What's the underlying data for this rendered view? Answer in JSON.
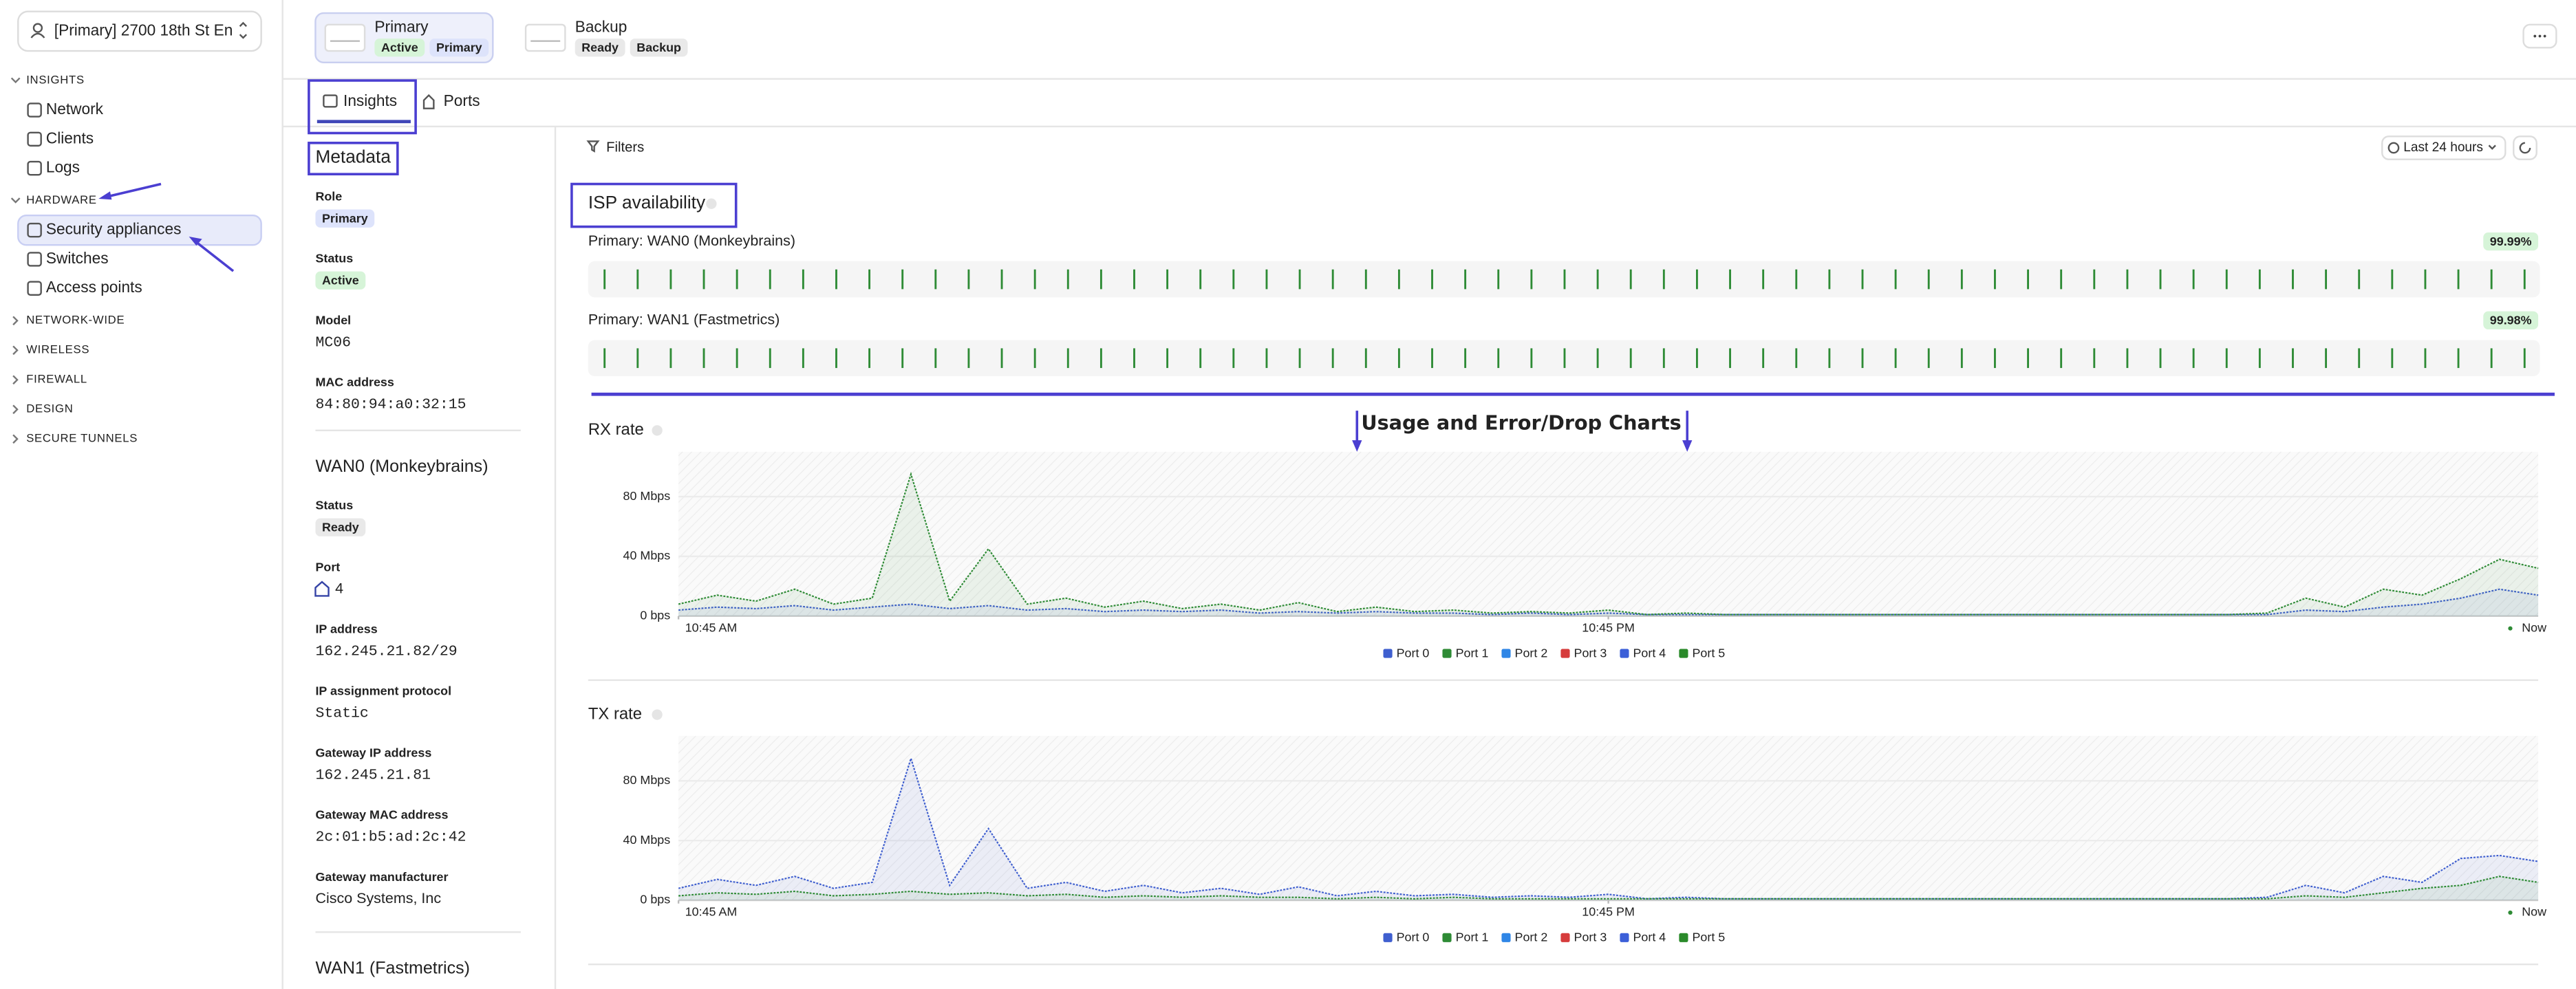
{
  "sidebar": {
    "network_selector": "[Primary] 2700 18th St En",
    "sections": [
      {
        "title": "INSIGHTS",
        "items": [
          "Network",
          "Clients",
          "Logs"
        ]
      },
      {
        "title": "HARDWARE",
        "items": [
          "Security appliances",
          "Switches",
          "Access points"
        ],
        "active_item": 0
      },
      {
        "title": "NETWORK-WIDE"
      },
      {
        "title": "WIRELESS"
      },
      {
        "title": "FIREWALL"
      },
      {
        "title": "DESIGN"
      },
      {
        "title": "SECURE TUNNELS"
      }
    ]
  },
  "devices": [
    {
      "name": "Primary",
      "selected": true,
      "badges": [
        {
          "text": "Active",
          "style": "green"
        },
        {
          "text": "Primary",
          "style": "blue"
        }
      ]
    },
    {
      "name": "Backup",
      "selected": false,
      "badges": [
        {
          "text": "Ready",
          "style": "gray"
        },
        {
          "text": "Backup",
          "style": "gray"
        }
      ]
    }
  ],
  "tabs": [
    "Insights",
    "Ports"
  ],
  "metadata": {
    "title": "Metadata",
    "fields": [
      {
        "label": "Role",
        "value": "Primary",
        "style": "blue"
      },
      {
        "label": "Status",
        "value": "Active",
        "style": "green"
      },
      {
        "label": "Model",
        "value": "MC06",
        "style": "mono"
      },
      {
        "label": "MAC address",
        "value": "84:80:94:a0:32:15",
        "style": "mono"
      }
    ],
    "wan_sections": [
      {
        "title": "WAN0 (Monkeybrains)",
        "fields": [
          {
            "label": "Status",
            "value": "Ready",
            "style": "gray"
          },
          {
            "label": "Port",
            "value": "4",
            "style": "port"
          },
          {
            "label": "IP address",
            "value": "162.245.21.82/29",
            "style": "mono"
          },
          {
            "label": "IP assignment protocol",
            "value": "Static",
            "style": "mono"
          },
          {
            "label": "Gateway IP address",
            "value": "162.245.21.81",
            "style": "mono"
          },
          {
            "label": "Gateway MAC address",
            "value": "2c:01:b5:ad:2c:42",
            "style": "mono"
          },
          {
            "label": "Gateway manufacturer",
            "value": "Cisco Systems, Inc",
            "style": "text"
          }
        ]
      },
      {
        "title": "WAN1 (Fastmetrics)",
        "fields": []
      }
    ]
  },
  "toolbar": {
    "filters": "Filters",
    "time_range": "Last 24 hours"
  },
  "isp": {
    "title": "ISP availability",
    "links": [
      {
        "label": "Primary: WAN0 (Monkeybrains)",
        "availability": "99.99%"
      },
      {
        "label": "Primary: WAN1 (Fastmetrics)",
        "availability": "99.98%"
      }
    ]
  },
  "annotations": [
    "Usage and Error/Drop Charts"
  ],
  "charts": [
    {
      "type": "line",
      "title": "RX rate",
      "ylim": [
        0,
        110
      ],
      "yticks": [
        {
          "value": 0,
          "label": "0 bps"
        },
        {
          "value": 40,
          "label": "40 Mbps"
        },
        {
          "value": 80,
          "label": "80 Mbps"
        }
      ],
      "xlim": [
        0,
        24
      ],
      "xticks": [
        {
          "value": 0,
          "label": "10:45 AM"
        },
        {
          "value": 12,
          "label": "10:45 PM"
        },
        {
          "value": 24,
          "label": "Now"
        }
      ],
      "x": [
        0,
        0.5,
        1,
        1.5,
        2,
        2.5,
        3,
        3.5,
        4,
        4.5,
        5,
        5.5,
        6,
        6.5,
        7,
        7.5,
        8,
        8.5,
        9,
        9.5,
        10,
        10.5,
        11,
        11.5,
        12,
        12.5,
        13,
        13.5,
        14,
        14.5,
        15,
        15.5,
        16,
        16.5,
        17,
        17.5,
        18,
        18.5,
        19,
        19.5,
        20,
        20.5,
        21,
        21.5,
        22,
        22.5,
        23,
        23.5,
        24
      ],
      "series": [
        {
          "name": "Port 0",
          "color": "#3f5fcf",
          "values": [
            4,
            6,
            5,
            7,
            4,
            6,
            8,
            5,
            7,
            4,
            5,
            3,
            4,
            3,
            4,
            2,
            3,
            2,
            3,
            2,
            2,
            1,
            2,
            1,
            2,
            1,
            1,
            1,
            1,
            1,
            1,
            1,
            1,
            1,
            1,
            1,
            1,
            1,
            1,
            1,
            1,
            1,
            4,
            3,
            6,
            8,
            12,
            18,
            14
          ]
        },
        {
          "name": "Port 1",
          "color": "#2e8b35",
          "values": [
            8,
            14,
            10,
            18,
            8,
            12,
            95,
            10,
            45,
            8,
            12,
            6,
            10,
            5,
            8,
            4,
            9,
            3,
            6,
            3,
            4,
            2,
            3,
            2,
            4,
            1,
            2,
            1,
            1,
            1,
            1,
            1,
            1,
            1,
            1,
            1,
            1,
            1,
            1,
            1,
            1,
            2,
            12,
            6,
            18,
            14,
            25,
            38,
            32
          ]
        },
        {
          "name": "Port 2",
          "color": "#2f86e6"
        },
        {
          "name": "Port 3",
          "color": "#d63c3c"
        },
        {
          "name": "Port 4",
          "color": "#3b5fd8"
        },
        {
          "name": "Port 5",
          "color": "#2a8a2a"
        }
      ]
    },
    {
      "type": "line",
      "title": "TX rate",
      "ylim": [
        0,
        110
      ],
      "yticks": [
        {
          "value": 0,
          "label": "0 bps"
        },
        {
          "value": 40,
          "label": "40 Mbps"
        },
        {
          "value": 80,
          "label": "80 Mbps"
        }
      ],
      "xlim": [
        0,
        24
      ],
      "xticks": [
        {
          "value": 0,
          "label": "10:45 AM"
        },
        {
          "value": 12,
          "label": "10:45 PM"
        },
        {
          "value": 24,
          "label": "Now"
        }
      ],
      "x": [
        0,
        0.5,
        1,
        1.5,
        2,
        2.5,
        3,
        3.5,
        4,
        4.5,
        5,
        5.5,
        6,
        6.5,
        7,
        7.5,
        8,
        8.5,
        9,
        9.5,
        10,
        10.5,
        11,
        11.5,
        12,
        12.5,
        13,
        13.5,
        14,
        14.5,
        15,
        15.5,
        16,
        16.5,
        17,
        17.5,
        18,
        18.5,
        19,
        19.5,
        20,
        20.5,
        21,
        21.5,
        22,
        22.5,
        23,
        23.5,
        24
      ],
      "series": [
        {
          "name": "Port 0",
          "color": "#3f5fcf",
          "values": [
            8,
            14,
            10,
            16,
            8,
            12,
            95,
            10,
            48,
            8,
            12,
            6,
            10,
            5,
            8,
            4,
            9,
            3,
            6,
            3,
            4,
            2,
            3,
            2,
            4,
            1,
            2,
            1,
            1,
            1,
            1,
            1,
            1,
            1,
            1,
            1,
            1,
            1,
            1,
            1,
            1,
            2,
            10,
            5,
            16,
            12,
            28,
            30,
            26
          ]
        },
        {
          "name": "Port 1",
          "color": "#2e8b35",
          "values": [
            3,
            5,
            4,
            6,
            3,
            4,
            6,
            4,
            5,
            3,
            4,
            2,
            3,
            2,
            3,
            2,
            2,
            1,
            2,
            1,
            2,
            1,
            1,
            1,
            1,
            1,
            1,
            1,
            1,
            1,
            1,
            1,
            1,
            1,
            1,
            1,
            1,
            1,
            1,
            1,
            1,
            1,
            3,
            2,
            5,
            8,
            10,
            16,
            12
          ]
        },
        {
          "name": "Port 2",
          "color": "#2f86e6"
        },
        {
          "name": "Port 3",
          "color": "#d63c3c"
        },
        {
          "name": "Port 4",
          "color": "#3b5fd8"
        },
        {
          "name": "Port 5",
          "color": "#2a8a2a"
        }
      ]
    }
  ]
}
